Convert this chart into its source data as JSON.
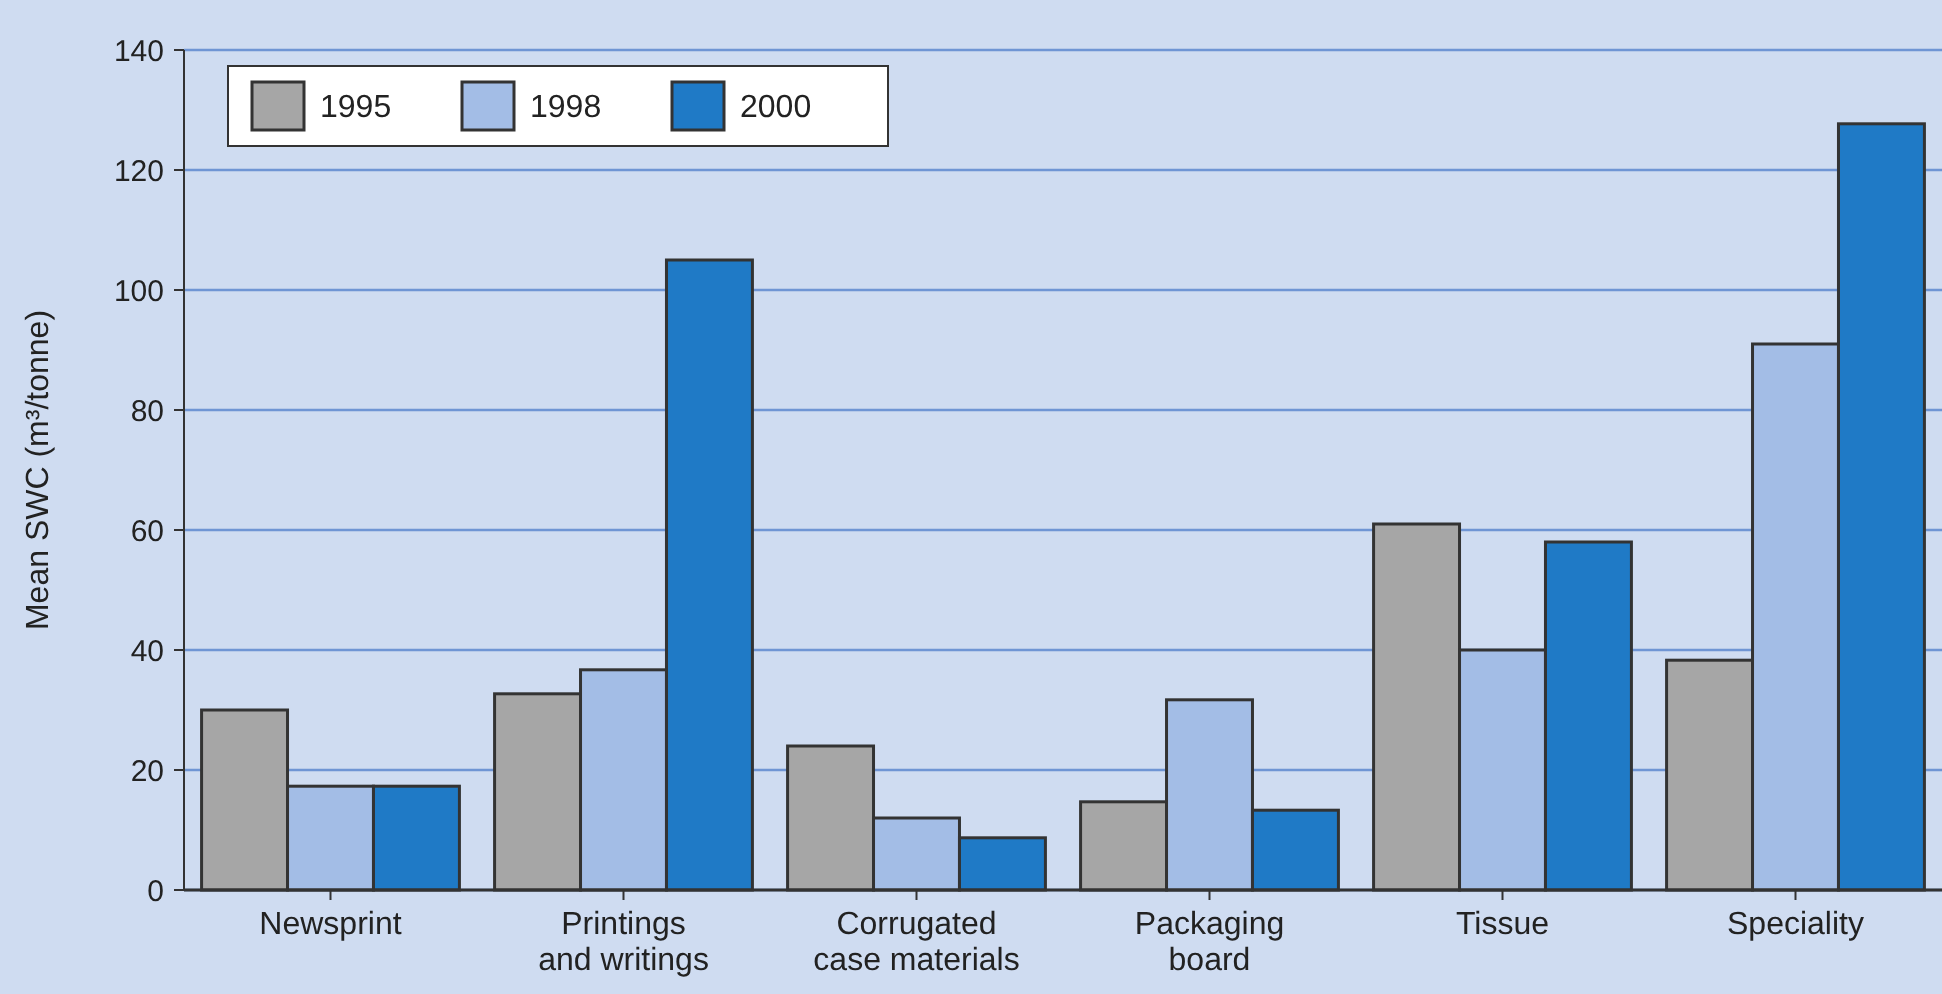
{
  "chart_data": {
    "type": "bar",
    "ylabel": "Mean SWC (m³/tonne)",
    "categories": [
      "Newsprint",
      "Printings and writings",
      "Corrugated case materials",
      "Packaging board",
      "Tissue",
      "Speciality"
    ],
    "series": [
      {
        "name": "1995",
        "color": "#a6a6a6",
        "values": [
          30,
          32.7,
          24,
          14.7,
          61,
          38.3
        ]
      },
      {
        "name": "1998",
        "color": "#a3bde6",
        "values": [
          17.3,
          36.7,
          12,
          31.7,
          40,
          91
        ]
      },
      {
        "name": "2000",
        "color": "#1f7ac6",
        "values": [
          17.3,
          105,
          8.7,
          13.3,
          58,
          127.7
        ]
      }
    ],
    "ylim": [
      0,
      140
    ],
    "yticks": [
      0,
      20,
      40,
      60,
      80,
      100,
      120,
      140
    ],
    "grid": "y",
    "legend": "top left"
  }
}
